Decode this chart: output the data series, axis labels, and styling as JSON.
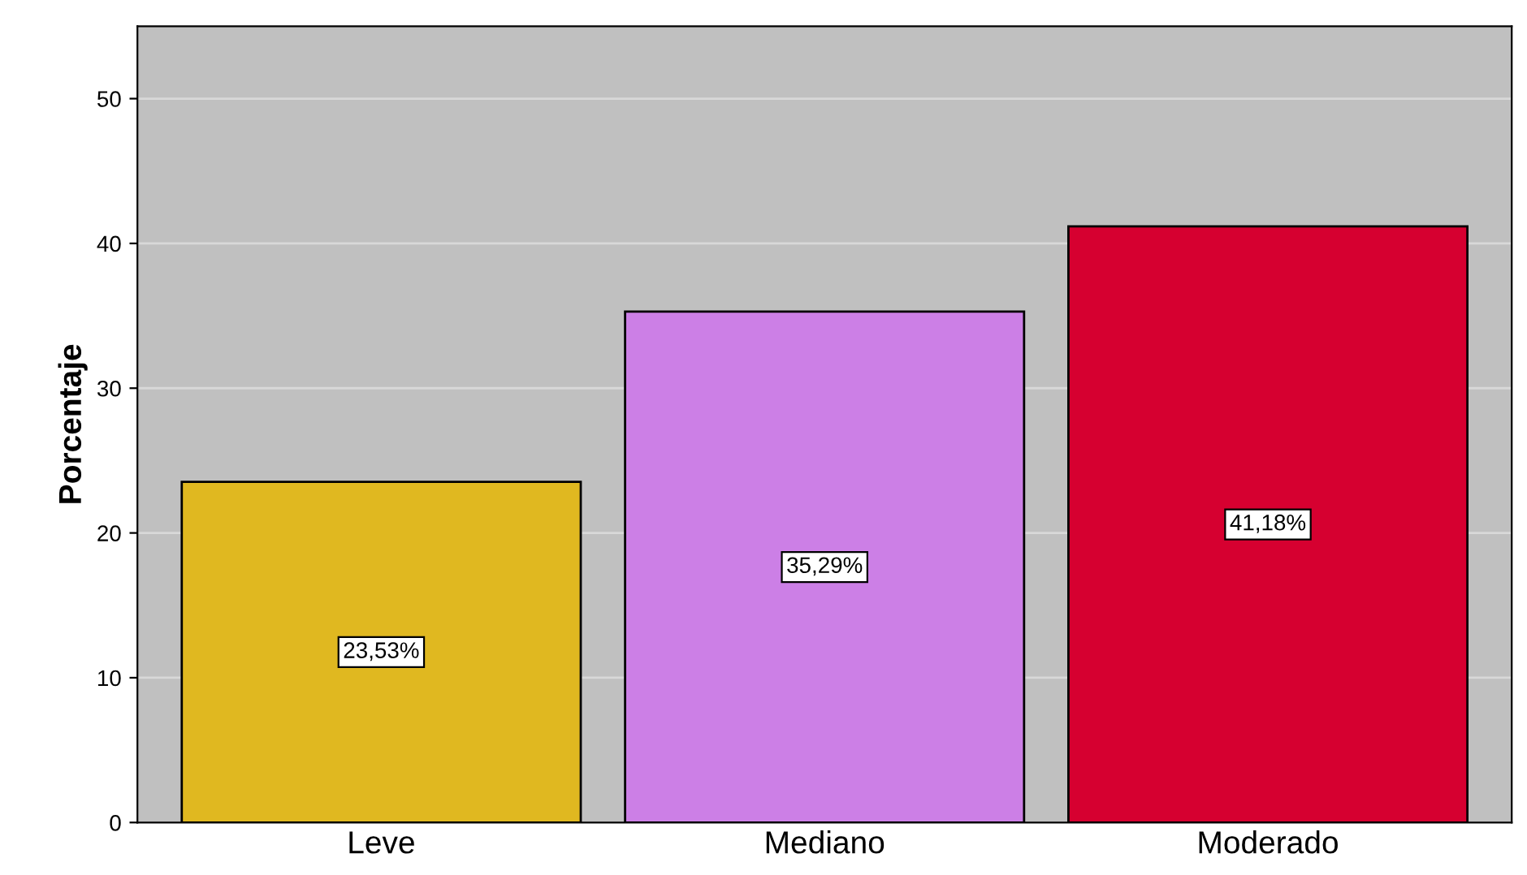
{
  "chart_data": {
    "type": "bar",
    "ylabel": "Porcentaje",
    "categories": [
      "Leve",
      "Mediano",
      "Moderado"
    ],
    "values": [
      23.53,
      35.29,
      41.18
    ],
    "colors": [
      "#e0b820",
      "#cc7fe6",
      "#d60030"
    ],
    "value_labels": [
      "23,53%",
      "35,29%",
      "41,18%"
    ],
    "ylim": [
      0,
      55
    ],
    "yticks": [
      0,
      10,
      20,
      30,
      40,
      50
    ],
    "grid": "y"
  }
}
